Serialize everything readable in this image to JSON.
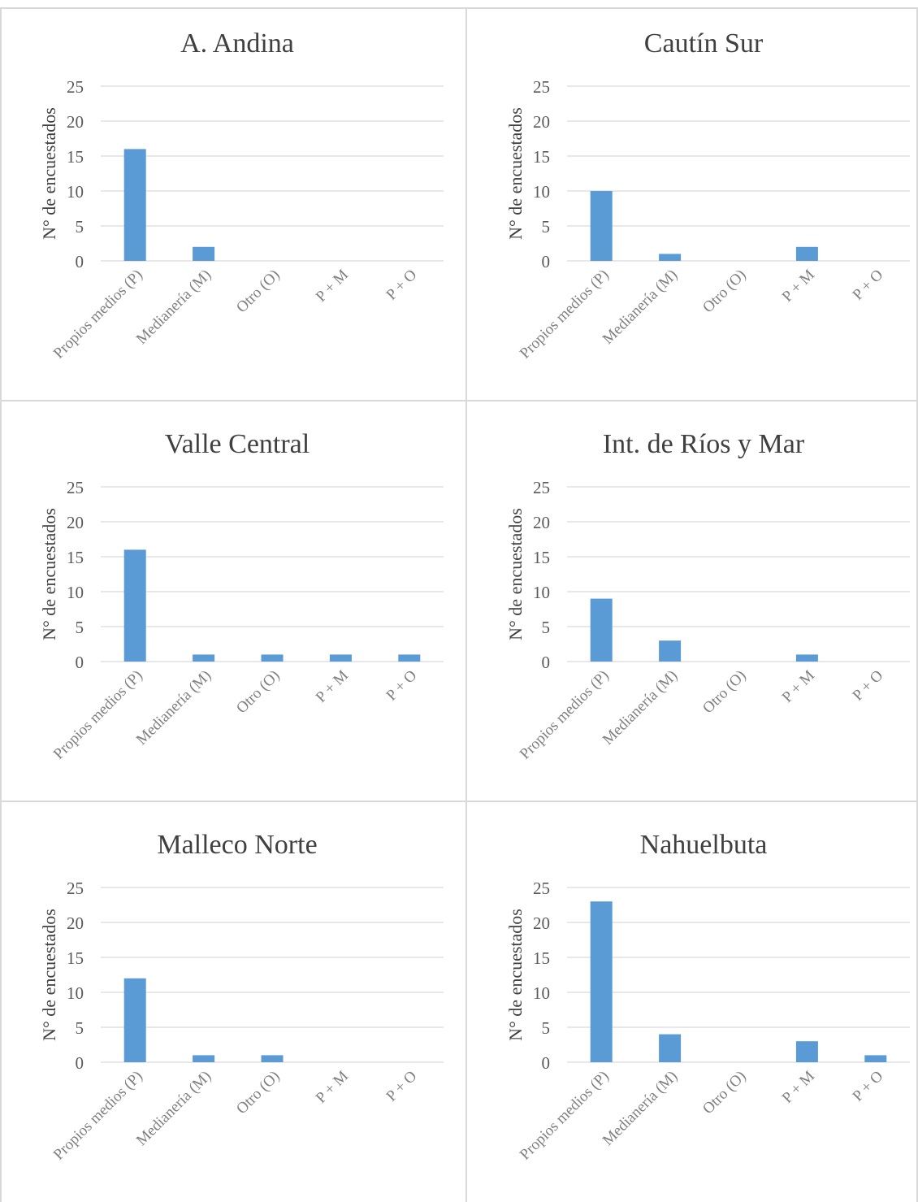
{
  "colors": {
    "bar": "#5b9bd5",
    "grid": "#d9d9d9",
    "border": "#d9d9d9",
    "text": "#404040",
    "tick_text": "#595959",
    "cat_text": "#808080"
  },
  "chart_data": [
    {
      "type": "bar",
      "title": "A. Andina",
      "ylabel": "N° de encuestados",
      "xlabel": "",
      "categories": [
        "Propios medios (P)",
        "Medianería (M)",
        "Otro (O)",
        "P + M",
        "P + O"
      ],
      "values": [
        16,
        2,
        0,
        0,
        0
      ],
      "ylim": [
        0,
        25
      ],
      "yticks": [
        0,
        5,
        10,
        15,
        20,
        25
      ],
      "grid": true,
      "legend": "none"
    },
    {
      "type": "bar",
      "title": "Cautín Sur",
      "ylabel": "N° de encuestados",
      "xlabel": "",
      "categories": [
        "Propios medios (P)",
        "Medianería (M)",
        "Otro (O)",
        "P + M",
        "P + O"
      ],
      "values": [
        10,
        1,
        0,
        2,
        0
      ],
      "ylim": [
        0,
        25
      ],
      "yticks": [
        0,
        5,
        10,
        15,
        20,
        25
      ],
      "grid": true,
      "legend": "none"
    },
    {
      "type": "bar",
      "title": "Valle Central",
      "ylabel": "N° de encuestados",
      "xlabel": "",
      "categories": [
        "Propios medios (P)",
        "Medianería (M)",
        "Otro (O)",
        "P + M",
        "P + O"
      ],
      "values": [
        16,
        1,
        1,
        1,
        1
      ],
      "ylim": [
        0,
        25
      ],
      "yticks": [
        0,
        5,
        10,
        15,
        20,
        25
      ],
      "grid": true,
      "legend": "none"
    },
    {
      "type": "bar",
      "title": "Int. de Ríos y Mar",
      "ylabel": "N° de encuestados",
      "xlabel": "",
      "categories": [
        "Propios medios (P)",
        "Medianería (M)",
        "Otro (O)",
        "P + M",
        "P + O"
      ],
      "values": [
        9,
        3,
        0,
        1,
        0
      ],
      "ylim": [
        0,
        25
      ],
      "yticks": [
        0,
        5,
        10,
        15,
        20,
        25
      ],
      "grid": true,
      "legend": "none"
    },
    {
      "type": "bar",
      "title": "Malleco Norte",
      "ylabel": "N° de encuestados",
      "xlabel": "",
      "categories": [
        "Propios medios (P)",
        "Medianería (M)",
        "Otro (O)",
        "P + M",
        "P + O"
      ],
      "values": [
        12,
        1,
        1,
        0,
        0
      ],
      "ylim": [
        0,
        25
      ],
      "yticks": [
        0,
        5,
        10,
        15,
        20,
        25
      ],
      "grid": true,
      "legend": "none"
    },
    {
      "type": "bar",
      "title": "Nahuelbuta",
      "ylabel": "N° de encuestados",
      "xlabel": "",
      "categories": [
        "Propios medios (P)",
        "Medianería (M)",
        "Otro (O)",
        "P + M",
        "P + O"
      ],
      "values": [
        23,
        4,
        0,
        3,
        1
      ],
      "ylim": [
        0,
        25
      ],
      "yticks": [
        0,
        5,
        10,
        15,
        20,
        25
      ],
      "grid": true,
      "legend": "none"
    }
  ]
}
